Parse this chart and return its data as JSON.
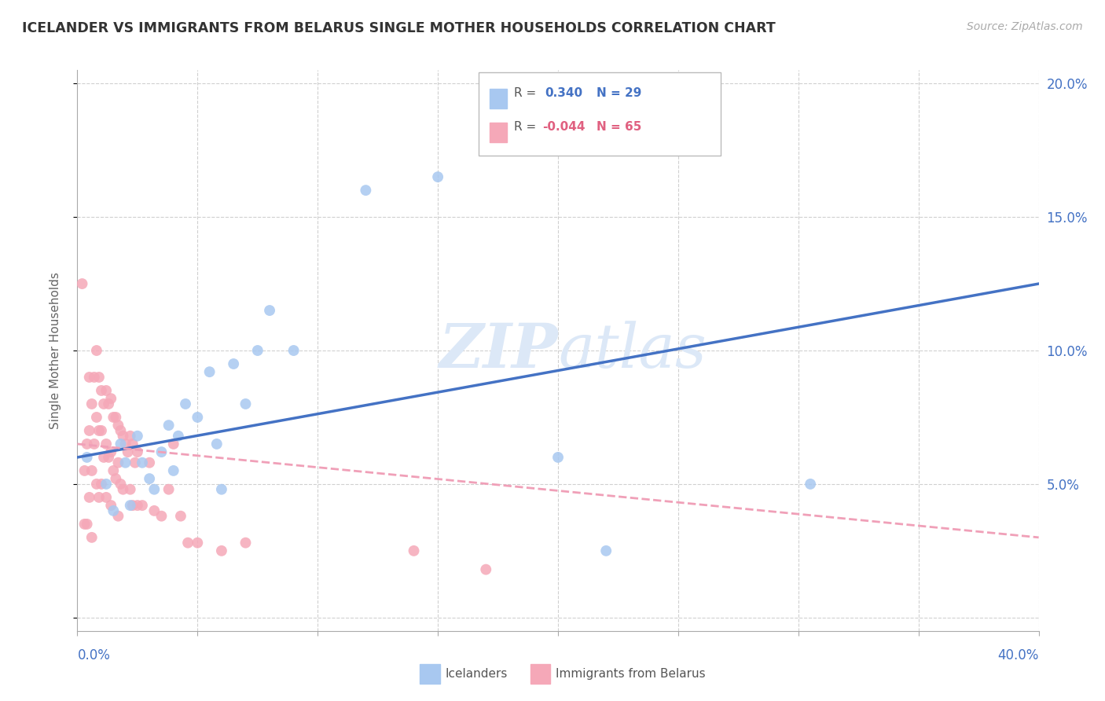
{
  "title": "ICELANDER VS IMMIGRANTS FROM BELARUS SINGLE MOTHER HOUSEHOLDS CORRELATION CHART",
  "source": "Source: ZipAtlas.com",
  "ylabel": "Single Mother Households",
  "ytick_vals": [
    0.0,
    0.05,
    0.1,
    0.15,
    0.2
  ],
  "ytick_labels": [
    "",
    "5.0%",
    "10.0%",
    "15.0%",
    "20.0%"
  ],
  "xlim": [
    0,
    0.4
  ],
  "ylim": [
    -0.005,
    0.205
  ],
  "blue_R": 0.34,
  "blue_N": 29,
  "pink_R": -0.044,
  "pink_N": 65,
  "blue_color": "#A8C8F0",
  "pink_color": "#F5A8B8",
  "blue_line_color": "#4472C4",
  "pink_line_color": "#F0A0B8",
  "legend_label_blue": "Icelanders",
  "legend_label_pink": "Immigrants from Belarus",
  "watermark": "ZIPatlas",
  "blue_line_x0": 0.0,
  "blue_line_y0": 0.06,
  "blue_line_x1": 0.4,
  "blue_line_y1": 0.125,
  "pink_line_x0": 0.0,
  "pink_line_y0": 0.065,
  "pink_line_x1": 0.4,
  "pink_line_y1": 0.03,
  "blue_scatter_x": [
    0.004,
    0.012,
    0.015,
    0.018,
    0.02,
    0.022,
    0.025,
    0.027,
    0.03,
    0.032,
    0.035,
    0.038,
    0.04,
    0.042,
    0.045,
    0.05,
    0.055,
    0.058,
    0.06,
    0.065,
    0.07,
    0.075,
    0.08,
    0.09,
    0.12,
    0.15,
    0.2,
    0.22,
    0.305
  ],
  "blue_scatter_y": [
    0.06,
    0.05,
    0.04,
    0.065,
    0.058,
    0.042,
    0.068,
    0.058,
    0.052,
    0.048,
    0.062,
    0.072,
    0.055,
    0.068,
    0.08,
    0.075,
    0.092,
    0.065,
    0.048,
    0.095,
    0.08,
    0.1,
    0.115,
    0.1,
    0.16,
    0.165,
    0.06,
    0.025,
    0.05
  ],
  "pink_scatter_x": [
    0.002,
    0.003,
    0.003,
    0.004,
    0.004,
    0.005,
    0.005,
    0.005,
    0.006,
    0.006,
    0.006,
    0.007,
    0.007,
    0.008,
    0.008,
    0.008,
    0.009,
    0.009,
    0.009,
    0.01,
    0.01,
    0.01,
    0.011,
    0.011,
    0.012,
    0.012,
    0.012,
    0.013,
    0.013,
    0.014,
    0.014,
    0.014,
    0.015,
    0.015,
    0.016,
    0.016,
    0.017,
    0.017,
    0.017,
    0.018,
    0.018,
    0.019,
    0.019,
    0.02,
    0.021,
    0.022,
    0.022,
    0.023,
    0.023,
    0.024,
    0.025,
    0.025,
    0.027,
    0.03,
    0.032,
    0.035,
    0.038,
    0.04,
    0.043,
    0.046,
    0.05,
    0.06,
    0.07,
    0.14,
    0.17
  ],
  "pink_scatter_y": [
    0.125,
    0.055,
    0.035,
    0.065,
    0.035,
    0.09,
    0.07,
    0.045,
    0.08,
    0.055,
    0.03,
    0.09,
    0.065,
    0.1,
    0.075,
    0.05,
    0.09,
    0.07,
    0.045,
    0.085,
    0.07,
    0.05,
    0.08,
    0.06,
    0.085,
    0.065,
    0.045,
    0.08,
    0.06,
    0.082,
    0.062,
    0.042,
    0.075,
    0.055,
    0.075,
    0.052,
    0.072,
    0.058,
    0.038,
    0.07,
    0.05,
    0.068,
    0.048,
    0.065,
    0.062,
    0.068,
    0.048,
    0.065,
    0.042,
    0.058,
    0.062,
    0.042,
    0.042,
    0.058,
    0.04,
    0.038,
    0.048,
    0.065,
    0.038,
    0.028,
    0.028,
    0.025,
    0.028,
    0.025,
    0.018
  ]
}
